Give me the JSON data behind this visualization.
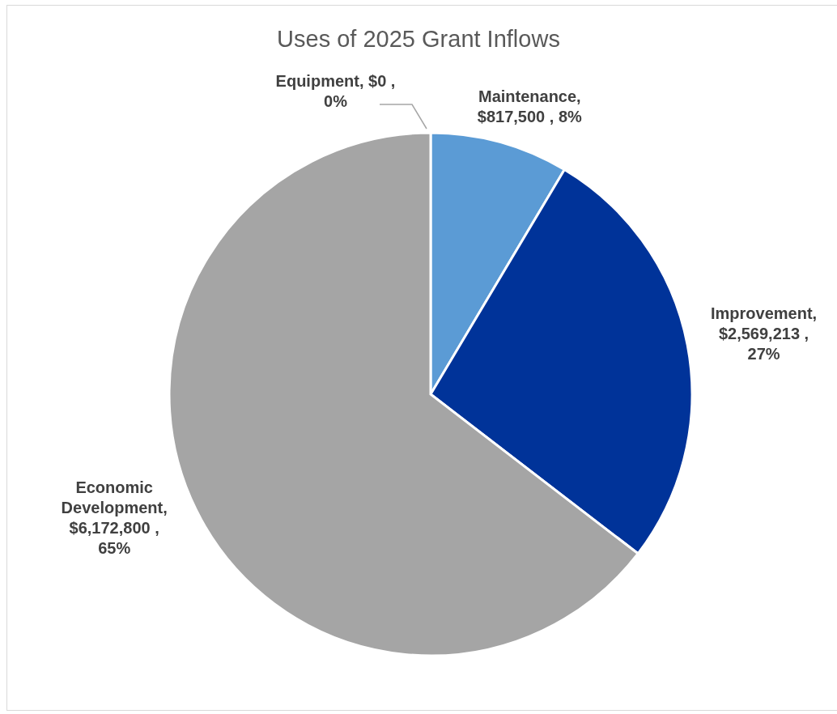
{
  "chart_data": {
    "type": "pie",
    "title": "Uses of 2025 Grant Inflows",
    "categories": [
      "Maintenance",
      "Improvement",
      "Economic Development",
      "Equipment"
    ],
    "values": [
      817500,
      2569213,
      6172800,
      0
    ],
    "colors": [
      "#5b9bd5",
      "#003399",
      "#a5a5a5",
      "#ffc000"
    ],
    "value_labels": [
      ", $817,500 , 8%",
      ", $2,569,213 , 27%",
      ", $6,172,800 , 65%",
      ", $0 , 0%"
    ]
  }
}
